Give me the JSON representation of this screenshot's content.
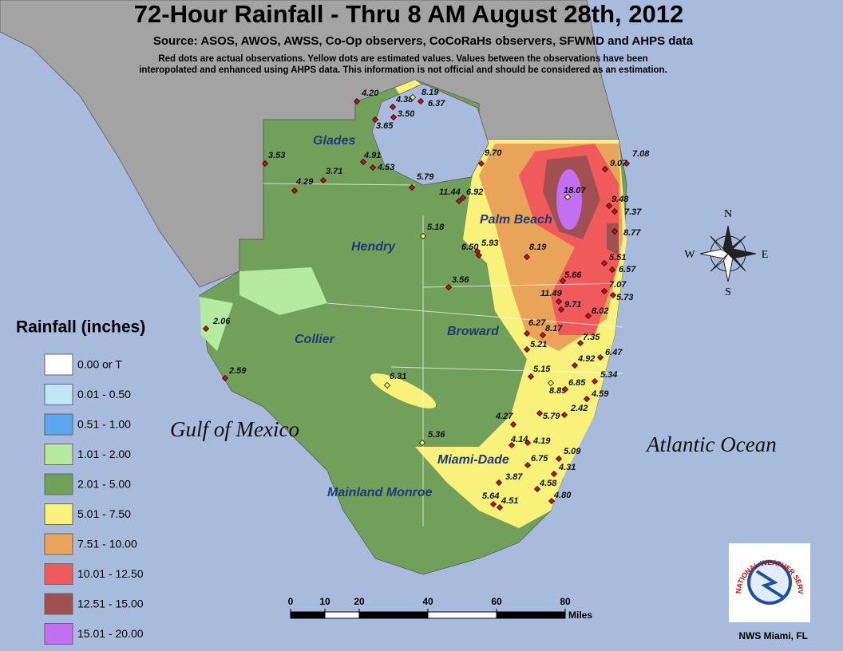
{
  "header": {
    "title": "72-Hour Rainfall - Thru 8 AM August 28th, 2012",
    "source": "Source: ASOS, AWOS, AWSS, Co-Op observers, CoCoRaHs observers, SFWMD and AHPS data",
    "note_lines": [
      "Red dots are actual observations. Yellow dots are estimated values. Values between the observations have been",
      "interopolated and enhanced using AHPS data. This information is not official and should be considered as an estimation."
    ]
  },
  "legend": {
    "title": "Rainfall (inches)",
    "items": [
      {
        "label": "0.00 or T",
        "color": "#ffffff"
      },
      {
        "label": "0.01 - 0.50",
        "color": "#bee8fa"
      },
      {
        "label": "0.51 - 1.00",
        "color": "#5ba6f0"
      },
      {
        "label": "1.01 - 2.00",
        "color": "#b4eba0"
      },
      {
        "label": "2.01 - 5.00",
        "color": "#70a05a"
      },
      {
        "label": "5.01 - 7.50",
        "color": "#f8f27a"
      },
      {
        "label": "7.51 - 10.00",
        "color": "#e8a55a"
      },
      {
        "label": "10.01 - 12.50",
        "color": "#f05a5a"
      },
      {
        "label": "12.51 - 15.00",
        "color": "#a05050"
      },
      {
        "label": "15.01 - 20.00",
        "color": "#c070f0"
      }
    ]
  },
  "regions": [
    "Glades",
    "Hendry",
    "Palm Beach",
    "Collier",
    "Broward",
    "Miami-Dade",
    "Mainland Monroe"
  ],
  "water_labels": [
    "Gulf of Mexico",
    "Atlantic Ocean"
  ],
  "compass": [
    "N",
    "E",
    "S",
    "W"
  ],
  "scale": {
    "ticks": [
      0,
      10,
      20,
      40,
      60,
      80
    ],
    "unit": "Miles"
  },
  "logo": {
    "text": "NATIONAL WEATHER SERVICE"
  },
  "footer": "NWS Miami, FL",
  "observations": [
    {
      "value": "4.20",
      "color": "#d01010"
    },
    {
      "value": "4.38",
      "color": "#d01010"
    },
    {
      "value": "8.19",
      "color": "#f5f07a"
    },
    {
      "value": "6.37",
      "color": "#d01010"
    },
    {
      "value": "3.50",
      "color": "#d01010"
    },
    {
      "value": "3.65",
      "color": "#d01010"
    },
    {
      "value": "3.53",
      "color": "#d01010"
    },
    {
      "value": "4.91",
      "color": "#d01010"
    },
    {
      "value": "4.53",
      "color": "#d01010"
    },
    {
      "value": "3.71",
      "color": "#d01010"
    },
    {
      "value": "4.29",
      "color": "#d01010"
    },
    {
      "value": "5.79",
      "color": "#d01010"
    },
    {
      "value": "9.70",
      "color": "#d01010"
    },
    {
      "value": "11.44",
      "color": "#d01010"
    },
    {
      "value": "6.92",
      "color": "#d01010"
    },
    {
      "value": "18.07",
      "color": "#f5f07a"
    },
    {
      "value": "7.08",
      "color": "#d01010"
    },
    {
      "value": "9.07",
      "color": "#d01010"
    },
    {
      "value": "9.48",
      "color": "#d01010"
    },
    {
      "value": "7.37",
      "color": "#d01010"
    },
    {
      "value": "8.77",
      "color": "#d01010"
    },
    {
      "value": "5.18",
      "color": "#f5f07a"
    },
    {
      "value": "6.50",
      "color": "#d01010"
    },
    {
      "value": "5.93",
      "color": "#d01010"
    },
    {
      "value": "8.19",
      "color": "#d01010"
    },
    {
      "value": "5.51",
      "color": "#d01010"
    },
    {
      "value": "6.57",
      "color": "#d01010"
    },
    {
      "value": "3.56",
      "color": "#d01010"
    },
    {
      "value": "5.66",
      "color": "#d01010"
    },
    {
      "value": "7.07",
      "color": "#d01010"
    },
    {
      "value": "5.73",
      "color": "#d01010"
    },
    {
      "value": "11.49",
      "color": "#d01010"
    },
    {
      "value": "9.71",
      "color": "#d01010"
    },
    {
      "value": "8.02",
      "color": "#d01010"
    },
    {
      "value": "6.27",
      "color": "#d01010"
    },
    {
      "value": "8.17",
      "color": "#d01010"
    },
    {
      "value": "7.35",
      "color": "#d01010"
    },
    {
      "value": "5.21",
      "color": "#d01010"
    },
    {
      "value": "6.47",
      "color": "#d01010"
    },
    {
      "value": "4.92",
      "color": "#d01010"
    },
    {
      "value": "5.15",
      "color": "#d01010"
    },
    {
      "value": "5.34",
      "color": "#d01010"
    },
    {
      "value": "8.89",
      "color": "#f5f07a"
    },
    {
      "value": "6.85",
      "color": "#d01010"
    },
    {
      "value": "4.59",
      "color": "#d01010"
    },
    {
      "value": "2.42",
      "color": "#d01010"
    },
    {
      "value": "5.79",
      "color": "#d01010"
    },
    {
      "value": "4.27",
      "color": "#d01010"
    },
    {
      "value": "4.14",
      "color": "#d01010"
    },
    {
      "value": "4.19",
      "color": "#d01010"
    },
    {
      "value": "5.09",
      "color": "#d01010"
    },
    {
      "value": "6.75",
      "color": "#d01010"
    },
    {
      "value": "4.31",
      "color": "#d01010"
    },
    {
      "value": "3.87",
      "color": "#d01010"
    },
    {
      "value": "4.58",
      "color": "#d01010"
    },
    {
      "value": "4.80",
      "color": "#d01010"
    },
    {
      "value": "5.64",
      "color": "#d01010"
    },
    {
      "value": "4.51",
      "color": "#d01010"
    },
    {
      "value": "2.06",
      "color": "#d01010"
    },
    {
      "value": "2.59",
      "color": "#d01010"
    },
    {
      "value": "6.31",
      "color": "#f5f07a"
    },
    {
      "value": "5.36",
      "color": "#f5f07a"
    }
  ]
}
